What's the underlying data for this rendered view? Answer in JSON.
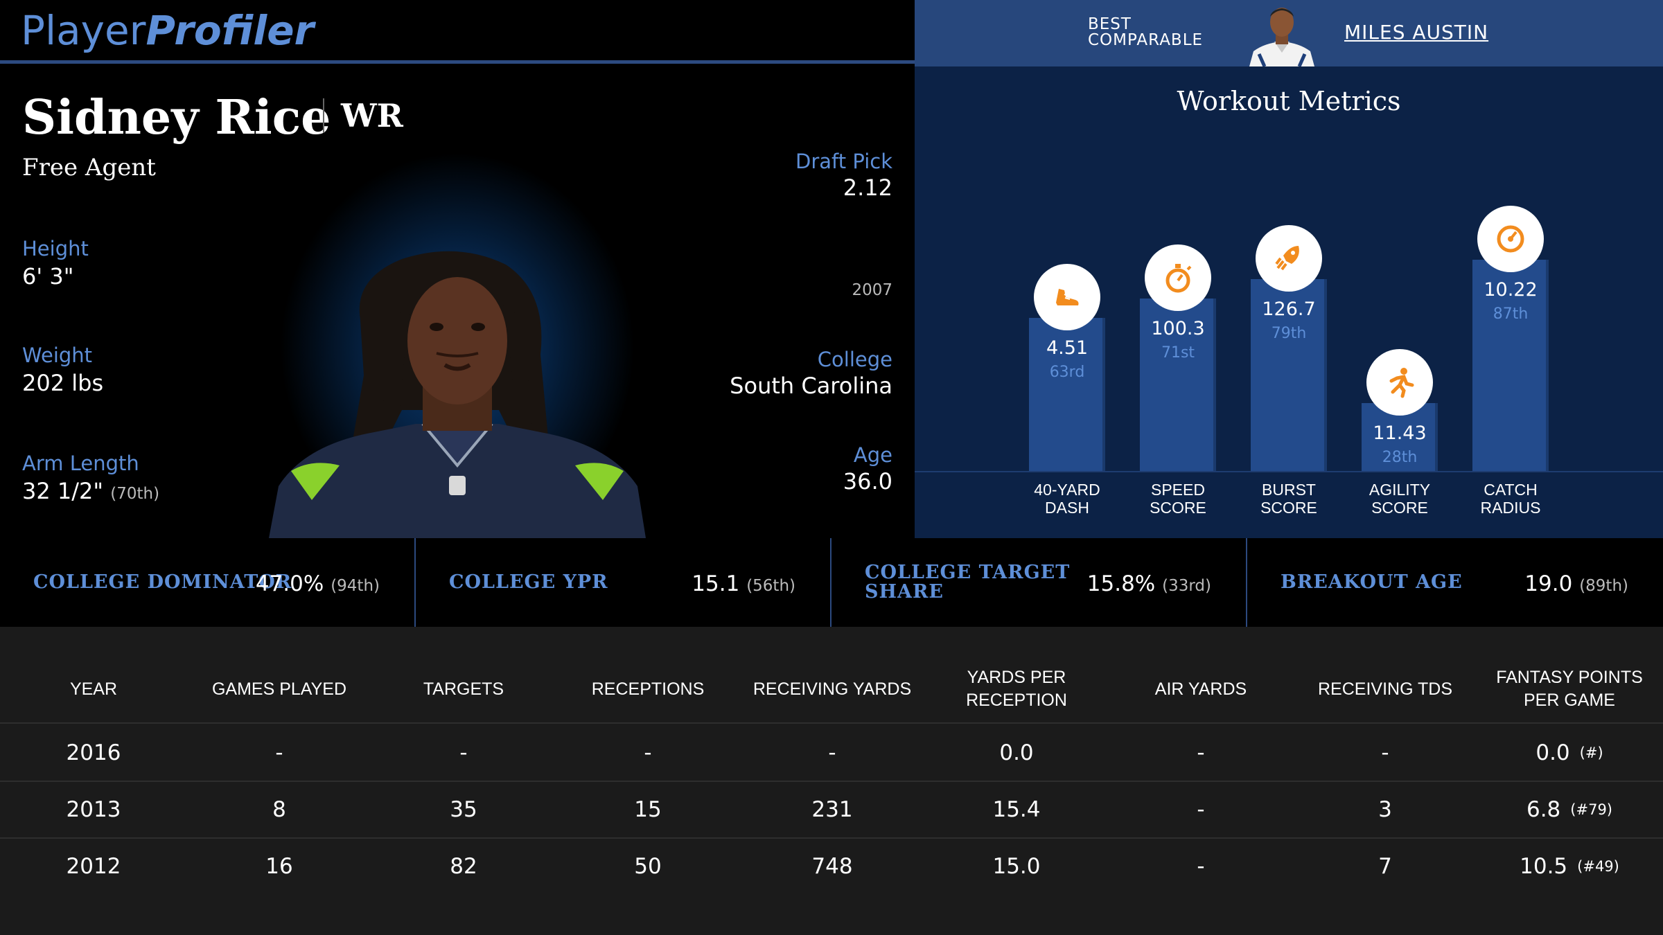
{
  "brand": {
    "logo_player": "Player",
    "logo_profiler": "Profiler"
  },
  "comparable": {
    "label_line1": "BEST",
    "label_line2": "COMPARABLE",
    "name": "MILES AUSTIN"
  },
  "player": {
    "name": "Sidney Rice",
    "position": "WR",
    "team": "Free Agent",
    "height_label": "Height",
    "height": "6' 3\"",
    "weight_label": "Weight",
    "weight": "202 lbs",
    "arm_label": "Arm Length",
    "arm": "32 1/2\"",
    "arm_pct": "(70th)",
    "draft_label": "Draft Pick",
    "draft": "2.12",
    "draft_year": "2007",
    "college_label": "College",
    "college": "South Carolina",
    "age_label": "Age",
    "age": "36.0"
  },
  "workout": {
    "title": "Workout Metrics",
    "metrics": [
      {
        "label_line1": "40-YARD",
        "label_line2": "DASH",
        "value": "4.51",
        "percentile": "63rd",
        "percentile_num": 63,
        "icon": "shoe-icon"
      },
      {
        "label_line1": "SPEED",
        "label_line2": "SCORE",
        "value": "100.3",
        "percentile": "71st",
        "percentile_num": 71,
        "icon": "stopwatch-icon"
      },
      {
        "label_line1": "BURST",
        "label_line2": "SCORE",
        "value": "126.7",
        "percentile": "79th",
        "percentile_num": 79,
        "icon": "rocket-icon"
      },
      {
        "label_line1": "AGILITY",
        "label_line2": "SCORE",
        "value": "11.43",
        "percentile": "28th",
        "percentile_num": 28,
        "icon": "runner-icon"
      },
      {
        "label_line1": "CATCH",
        "label_line2": "RADIUS",
        "value": "10.22",
        "percentile": "87th",
        "percentile_num": 87,
        "icon": "gauge-icon"
      }
    ],
    "colors": {
      "bar": "#234b8c",
      "icon": "#f28c1e",
      "percentile": "#5e8fd8"
    }
  },
  "college_stats": [
    {
      "label_line1": "COLLEGE DOMINATOR",
      "label_line2": "",
      "value": "47.0%",
      "pct": "(94th)"
    },
    {
      "label_line1": "COLLEGE YPR",
      "label_line2": "",
      "value": "15.1",
      "pct": "(56th)"
    },
    {
      "label_line1": "COLLEGE TARGET",
      "label_line2": "SHARE",
      "value": "15.8%",
      "pct": "(33rd)"
    },
    {
      "label_line1": "BREAKOUT AGE",
      "label_line2": "",
      "value": "19.0",
      "pct": "(89th)"
    }
  ],
  "table": {
    "headers": [
      "YEAR",
      "GAMES PLAYED",
      "TARGETS",
      "RECEPTIONS",
      "RECEIVING YARDS",
      "YARDS PER RECEPTION",
      "AIR YARDS",
      "RECEIVING TDS",
      "FANTASY POINTS PER GAME"
    ],
    "rows": [
      {
        "year": "2016",
        "games": "-",
        "targets": "-",
        "receptions": "-",
        "yards": "-",
        "ypr": "0.0",
        "air": "-",
        "tds": "-",
        "fppg": "0.0",
        "rank": "(#)"
      },
      {
        "year": "2013",
        "games": "8",
        "targets": "35",
        "receptions": "15",
        "yards": "231",
        "ypr": "15.4",
        "air": "-",
        "tds": "3",
        "fppg": "6.8",
        "rank": "(#79)"
      },
      {
        "year": "2012",
        "games": "16",
        "targets": "82",
        "receptions": "50",
        "yards": "748",
        "ypr": "15.0",
        "air": "-",
        "tds": "7",
        "fppg": "10.5",
        "rank": "(#49)"
      }
    ]
  }
}
